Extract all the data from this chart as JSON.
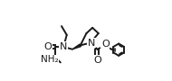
{
  "background": "#ffffff",
  "line_color": "#1a1a1a",
  "line_width": 1.4,
  "xlim": [
    0,
    1.0
  ],
  "ylim": [
    0.0,
    1.0
  ],
  "figsize": [
    1.9,
    0.9
  ]
}
